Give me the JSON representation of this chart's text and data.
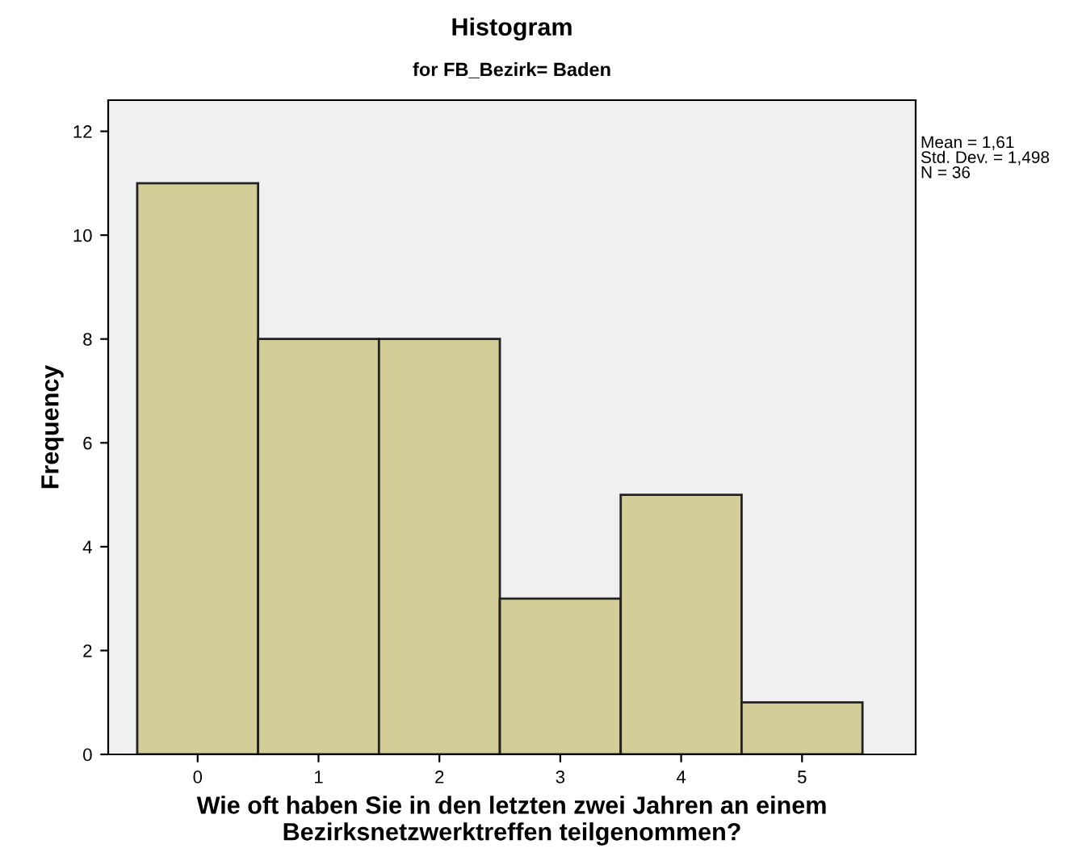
{
  "chart_data": {
    "type": "histogram",
    "title": "Histogram",
    "subtitle": "for FB_Bezirk= Baden",
    "xlabel": "Wie oft haben Sie in den letzten zwei Jahren an einem\nBezirksnetzwerktreffen teilgenommen?",
    "ylabel": "Frequency",
    "bins": [
      -0.5,
      0.5,
      1.5,
      2.5,
      3.5,
      4.5,
      5.5
    ],
    "values": [
      11,
      8,
      8,
      3,
      5,
      1
    ],
    "color": "#d3ce97",
    "xlim": [
      -0.74,
      5.94
    ],
    "xticks": [
      0,
      1,
      2,
      3,
      4,
      5
    ],
    "ylim": [
      0,
      12.6
    ],
    "yticks": [
      0,
      2,
      4,
      6,
      8,
      10,
      12
    ],
    "annotations": [
      "Mean = 1,61\nStd. Dev. = 1,498\nN = 36"
    ],
    "grid": false
  }
}
